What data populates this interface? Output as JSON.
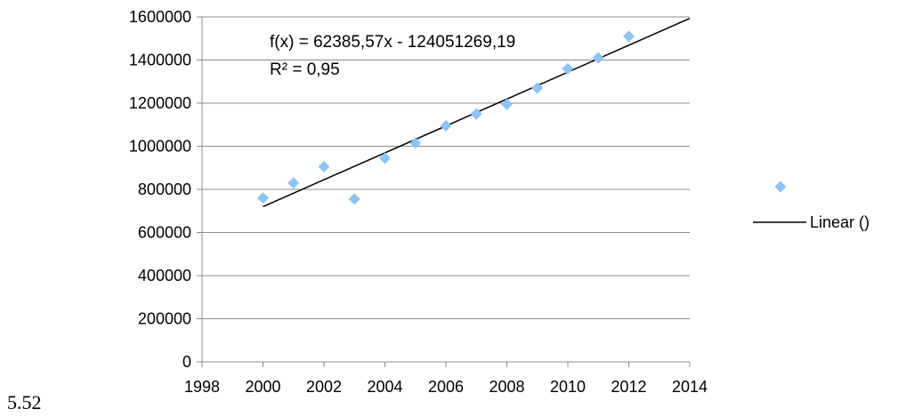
{
  "figure_label": "5.52",
  "chart_data": {
    "type": "scatter",
    "title": "",
    "xlabel": "",
    "ylabel": "",
    "xlim": [
      1998,
      2014
    ],
    "ylim": [
      0,
      1600000
    ],
    "x_ticks": [
      "1998",
      "2000",
      "2002",
      "2004",
      "2006",
      "2008",
      "2010",
      "2012",
      "2014"
    ],
    "y_ticks": [
      "0",
      "200000",
      "400000",
      "600000",
      "800000",
      "1000000",
      "1200000",
      "1400000",
      "1600000"
    ],
    "grid": "horizontal",
    "series": [
      {
        "marker": "diamond",
        "color": "#8ec4f2",
        "x": [
          2000,
          2001,
          2002,
          2003,
          2004,
          2005,
          2006,
          2007,
          2008,
          2009,
          2010,
          2011,
          2012
        ],
        "y": [
          760000,
          830000,
          905000,
          755000,
          945000,
          1015000,
          1095000,
          1150000,
          1195000,
          1270000,
          1360000,
          1410000,
          1510000
        ]
      }
    ],
    "trendline": {
      "label": "Linear ()",
      "color": "#000000",
      "slope": 62385.57,
      "intercept": -124051269.19,
      "x_range": [
        2000,
        2014
      ],
      "equation": "f(x) = 62385,57x - 124051269,19",
      "r_squared": "R² = 0,95"
    },
    "legend": {
      "placement": "right"
    }
  }
}
